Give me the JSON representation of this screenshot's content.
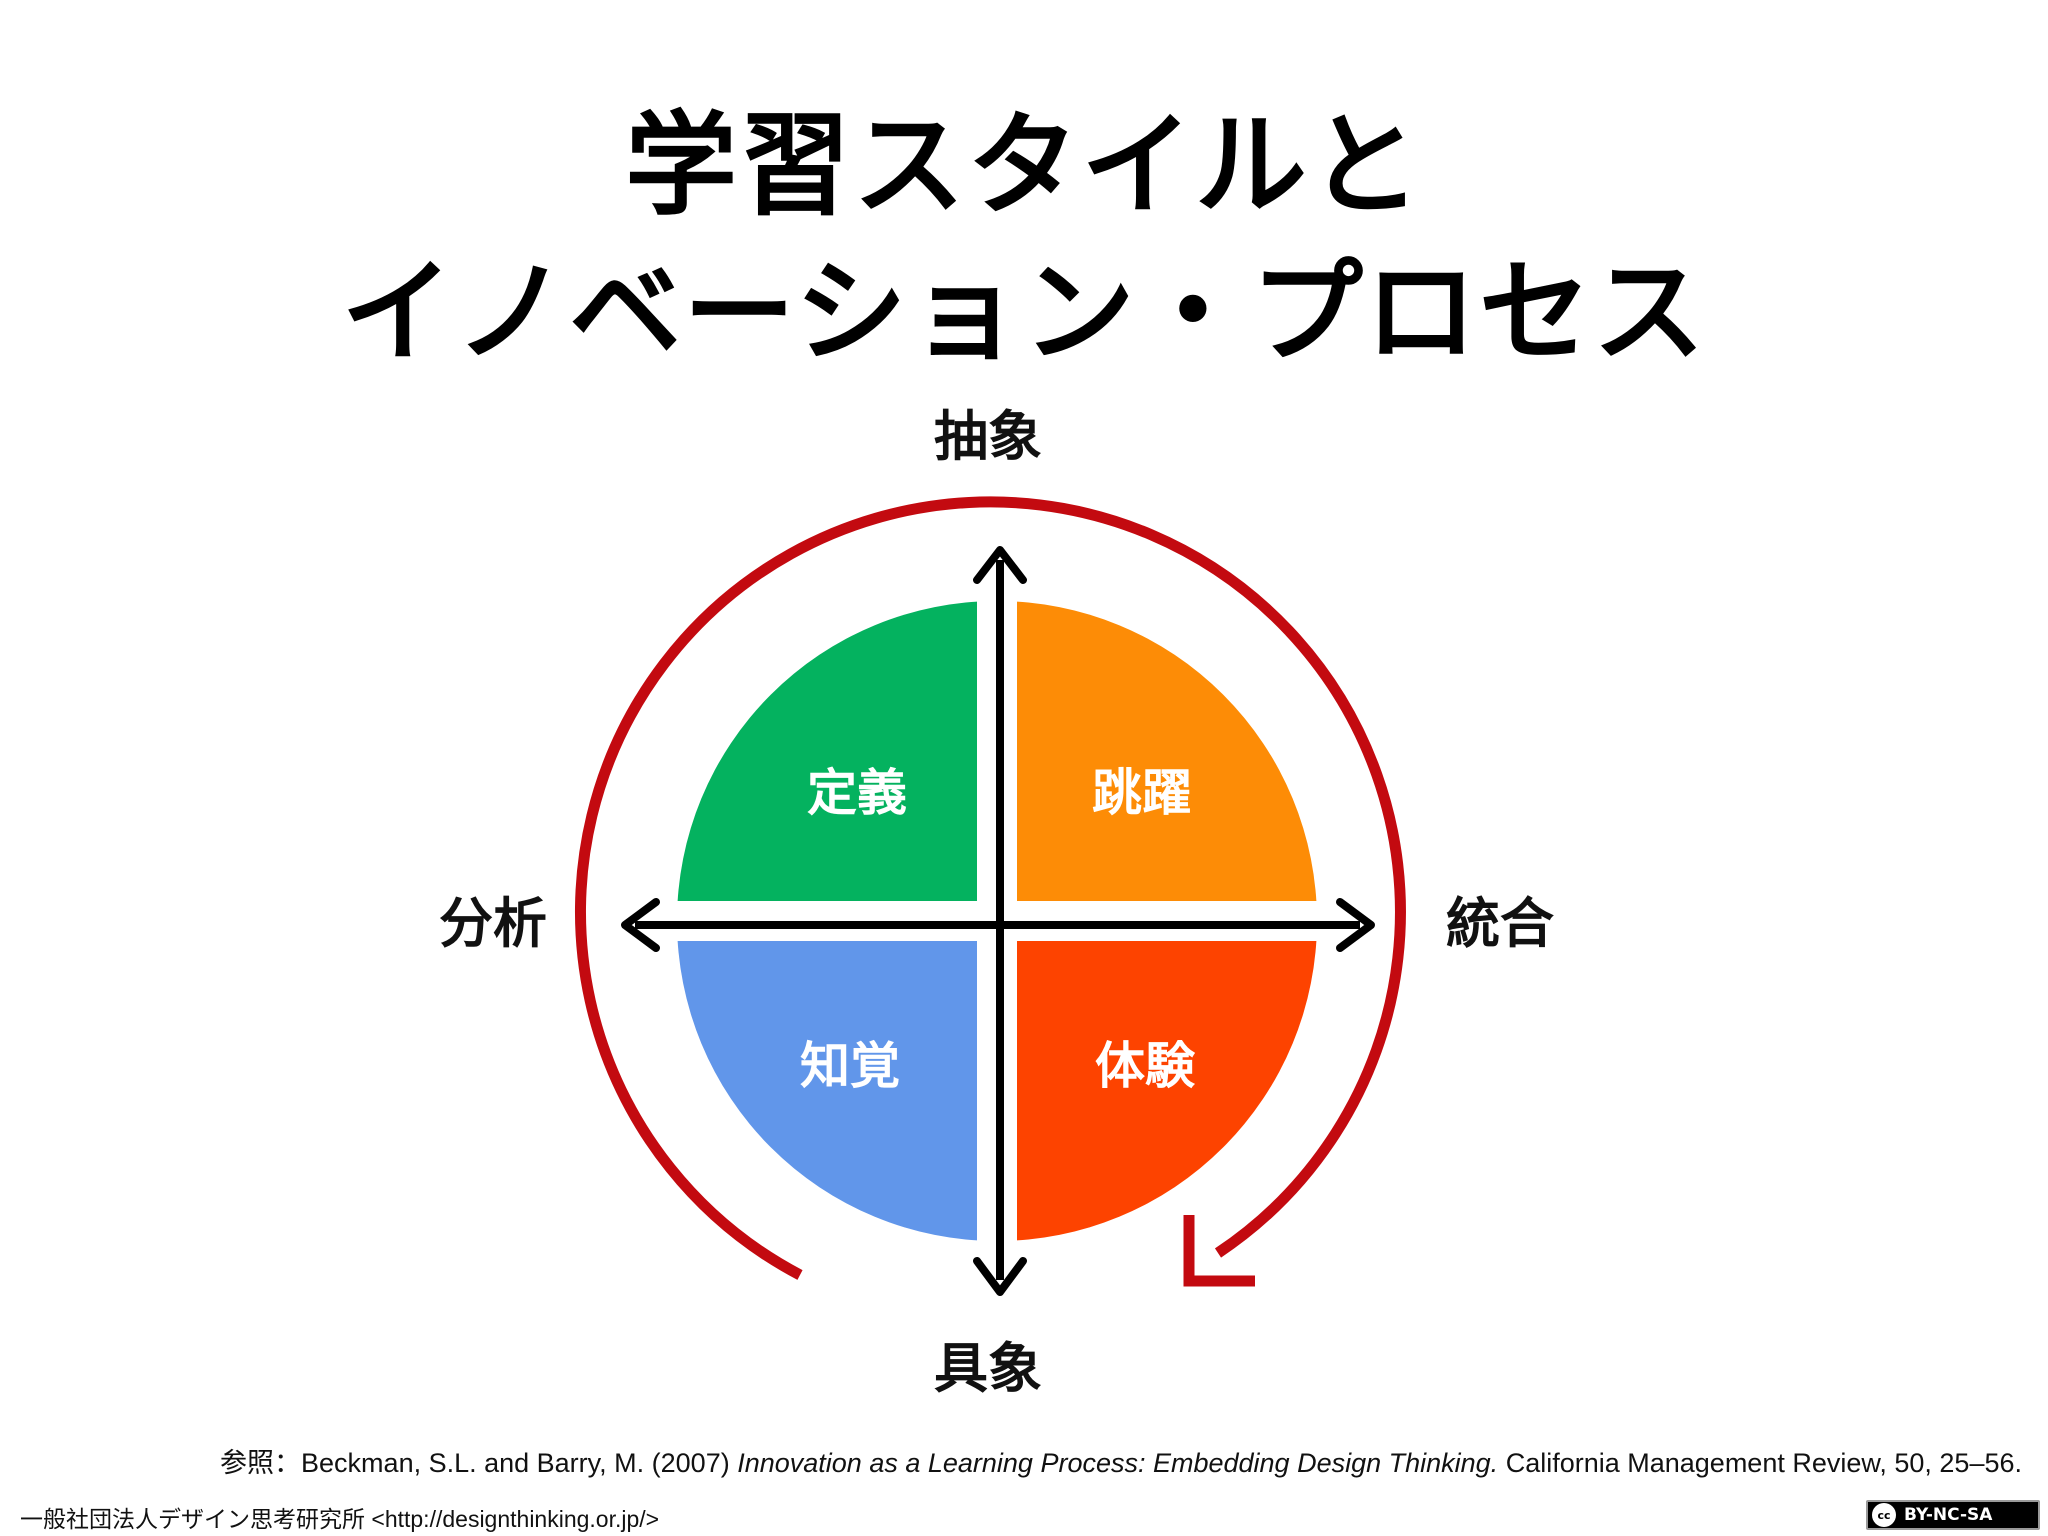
{
  "title": {
    "line1": "学習スタイルと",
    "line2": "イノベーション・プロセス"
  },
  "diagram": {
    "axis_top": "抽象",
    "axis_bottom": "具象",
    "axis_left": "分析",
    "axis_right": "統合",
    "quadrants": {
      "top_left": {
        "label": "定義",
        "color": "#04b25f"
      },
      "top_right": {
        "label": "跳躍",
        "color": "#fd8c06"
      },
      "bottom_left": {
        "label": "知覚",
        "color": "#6196ea"
      },
      "bottom_right": {
        "label": "体験",
        "color": "#fd4300"
      }
    },
    "cycle_arrow_color": "#c30a10"
  },
  "reference": {
    "prefix": "参照：Beckman, S.L. and Barry, M. (2007) ",
    "title": "Innovation as a Learning Process: Embedding Design Thinking.",
    "suffix": " California Management Review, 50, 25–56."
  },
  "footer": {
    "org": "一般社団法人デザイン思考研究所 <http://designthinking.or.jp/>"
  },
  "license": {
    "cc_mark": "cc",
    "label": "BY-NC-SA"
  }
}
